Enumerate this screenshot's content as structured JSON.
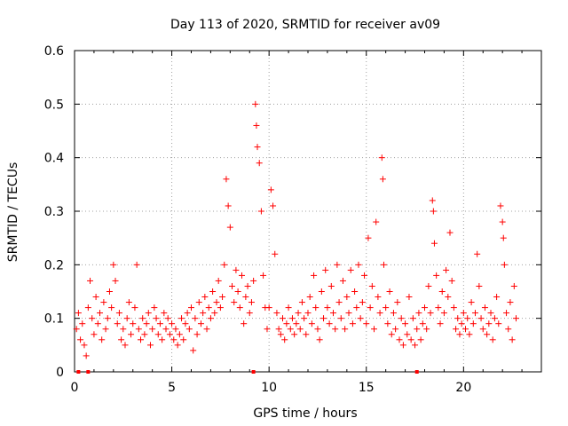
{
  "chart_data": {
    "type": "scatter",
    "title": "Day 113 of 2020, SRMTID for receiver av09",
    "xlabel": "GPS time / hours",
    "ylabel": "SRMTID / TECUs",
    "xlim": [
      0,
      24
    ],
    "ylim": [
      0,
      0.6
    ],
    "grid": true,
    "marker": "+",
    "color": "#ff0000",
    "x_ticks": [
      0,
      5,
      10,
      15,
      20
    ],
    "y_ticks": [
      0,
      0.1,
      0.2,
      0.3,
      0.4,
      0.5,
      0.6
    ],
    "x_tick_labels": [
      "0",
      "5",
      "10",
      "15",
      "20"
    ],
    "y_tick_labels": [
      "0",
      "0.1",
      "0.2",
      "0.3",
      "0.4",
      "0.5",
      "0.6"
    ],
    "series": [
      {
        "name": "SRMTID",
        "points": [
          [
            0.1,
            0.08
          ],
          [
            0.2,
            0.11
          ],
          [
            0.3,
            0.06
          ],
          [
            0.4,
            0.09
          ],
          [
            0.5,
            0.05
          ],
          [
            0.6,
            0.03
          ],
          [
            0.7,
            0.12
          ],
          [
            0.8,
            0.17
          ],
          [
            0.9,
            0.1
          ],
          [
            1.0,
            0.07
          ],
          [
            1.1,
            0.14
          ],
          [
            1.2,
            0.09
          ],
          [
            1.3,
            0.11
          ],
          [
            1.4,
            0.06
          ],
          [
            1.5,
            0.13
          ],
          [
            1.6,
            0.08
          ],
          [
            1.7,
            0.1
          ],
          [
            1.8,
            0.15
          ],
          [
            1.9,
            0.12
          ],
          [
            2.0,
            0.2
          ],
          [
            2.1,
            0.17
          ],
          [
            2.2,
            0.09
          ],
          [
            2.3,
            0.11
          ],
          [
            2.4,
            0.06
          ],
          [
            2.5,
            0.08
          ],
          [
            2.6,
            0.05
          ],
          [
            2.7,
            0.1
          ],
          [
            2.8,
            0.13
          ],
          [
            2.9,
            0.07
          ],
          [
            3.0,
            0.09
          ],
          [
            3.1,
            0.12
          ],
          [
            3.2,
            0.2
          ],
          [
            3.3,
            0.08
          ],
          [
            3.4,
            0.06
          ],
          [
            3.5,
            0.1
          ],
          [
            3.6,
            0.07
          ],
          [
            3.7,
            0.09
          ],
          [
            3.8,
            0.11
          ],
          [
            3.9,
            0.05
          ],
          [
            4.0,
            0.08
          ],
          [
            4.1,
            0.12
          ],
          [
            4.2,
            0.1
          ],
          [
            4.3,
            0.07
          ],
          [
            4.4,
            0.09
          ],
          [
            4.5,
            0.06
          ],
          [
            4.6,
            0.11
          ],
          [
            4.7,
            0.08
          ],
          [
            4.8,
            0.1
          ],
          [
            4.9,
            0.07
          ],
          [
            5.0,
            0.09
          ],
          [
            5.1,
            0.06
          ],
          [
            5.2,
            0.08
          ],
          [
            5.3,
            0.05
          ],
          [
            5.4,
            0.07
          ],
          [
            5.5,
            0.1
          ],
          [
            5.6,
            0.06
          ],
          [
            5.7,
            0.09
          ],
          [
            5.8,
            0.11
          ],
          [
            5.9,
            0.08
          ],
          [
            6.0,
            0.12
          ],
          [
            6.1,
            0.04
          ],
          [
            6.2,
            0.1
          ],
          [
            6.3,
            0.07
          ],
          [
            6.4,
            0.13
          ],
          [
            6.5,
            0.09
          ],
          [
            6.6,
            0.11
          ],
          [
            6.7,
            0.14
          ],
          [
            6.8,
            0.08
          ],
          [
            6.9,
            0.12
          ],
          [
            7.0,
            0.1
          ],
          [
            7.1,
            0.15
          ],
          [
            7.2,
            0.11
          ],
          [
            7.3,
            0.13
          ],
          [
            7.4,
            0.17
          ],
          [
            7.5,
            0.12
          ],
          [
            7.6,
            0.14
          ],
          [
            7.7,
            0.2
          ],
          [
            7.8,
            0.36
          ],
          [
            7.9,
            0.31
          ],
          [
            8.0,
            0.27
          ],
          [
            8.1,
            0.16
          ],
          [
            8.2,
            0.13
          ],
          [
            8.3,
            0.19
          ],
          [
            8.4,
            0.15
          ],
          [
            8.5,
            0.12
          ],
          [
            8.6,
            0.18
          ],
          [
            8.7,
            0.09
          ],
          [
            8.8,
            0.14
          ],
          [
            8.9,
            0.16
          ],
          [
            9.0,
            0.11
          ],
          [
            9.1,
            0.13
          ],
          [
            9.2,
            0.17
          ],
          [
            9.3,
            0.5
          ],
          [
            9.35,
            0.46
          ],
          [
            9.4,
            0.42
          ],
          [
            9.5,
            0.39
          ],
          [
            9.6,
            0.3
          ],
          [
            9.7,
            0.18
          ],
          [
            9.8,
            0.12
          ],
          [
            9.9,
            0.08
          ],
          [
            10.0,
            0.12
          ],
          [
            10.1,
            0.34
          ],
          [
            10.2,
            0.31
          ],
          [
            10.3,
            0.22
          ],
          [
            10.4,
            0.11
          ],
          [
            10.5,
            0.08
          ],
          [
            10.6,
            0.07
          ],
          [
            10.7,
            0.1
          ],
          [
            10.8,
            0.06
          ],
          [
            10.9,
            0.09
          ],
          [
            11.0,
            0.12
          ],
          [
            11.1,
            0.08
          ],
          [
            11.2,
            0.1
          ],
          [
            11.3,
            0.07
          ],
          [
            11.4,
            0.09
          ],
          [
            11.5,
            0.11
          ],
          [
            11.6,
            0.08
          ],
          [
            11.7,
            0.13
          ],
          [
            11.8,
            0.1
          ],
          [
            11.9,
            0.07
          ],
          [
            12.0,
            0.11
          ],
          [
            12.1,
            0.14
          ],
          [
            12.2,
            0.09
          ],
          [
            12.3,
            0.18
          ],
          [
            12.4,
            0.12
          ],
          [
            12.5,
            0.08
          ],
          [
            12.6,
            0.06
          ],
          [
            12.7,
            0.15
          ],
          [
            12.8,
            0.1
          ],
          [
            12.9,
            0.19
          ],
          [
            13.0,
            0.12
          ],
          [
            13.1,
            0.09
          ],
          [
            13.2,
            0.16
          ],
          [
            13.3,
            0.11
          ],
          [
            13.4,
            0.08
          ],
          [
            13.5,
            0.2
          ],
          [
            13.6,
            0.13
          ],
          [
            13.7,
            0.1
          ],
          [
            13.8,
            0.17
          ],
          [
            13.9,
            0.08
          ],
          [
            14.0,
            0.14
          ],
          [
            14.1,
            0.11
          ],
          [
            14.2,
            0.19
          ],
          [
            14.3,
            0.09
          ],
          [
            14.4,
            0.15
          ],
          [
            14.5,
            0.12
          ],
          [
            14.6,
            0.2
          ],
          [
            14.7,
            0.1
          ],
          [
            14.8,
            0.13
          ],
          [
            14.9,
            0.18
          ],
          [
            15.0,
            0.09
          ],
          [
            15.1,
            0.25
          ],
          [
            15.2,
            0.12
          ],
          [
            15.3,
            0.16
          ],
          [
            15.4,
            0.08
          ],
          [
            15.5,
            0.28
          ],
          [
            15.6,
            0.14
          ],
          [
            15.7,
            0.11
          ],
          [
            15.8,
            0.4
          ],
          [
            15.85,
            0.36
          ],
          [
            15.9,
            0.2
          ],
          [
            16.0,
            0.12
          ],
          [
            16.1,
            0.09
          ],
          [
            16.2,
            0.15
          ],
          [
            16.3,
            0.07
          ],
          [
            16.4,
            0.11
          ],
          [
            16.5,
            0.08
          ],
          [
            16.6,
            0.13
          ],
          [
            16.7,
            0.06
          ],
          [
            16.8,
            0.1
          ],
          [
            16.9,
            0.05
          ],
          [
            17.0,
            0.09
          ],
          [
            17.1,
            0.07
          ],
          [
            17.2,
            0.14
          ],
          [
            17.3,
            0.06
          ],
          [
            17.4,
            0.1
          ],
          [
            17.5,
            0.05
          ],
          [
            17.6,
            0.08
          ],
          [
            17.7,
            0.11
          ],
          [
            17.8,
            0.06
          ],
          [
            17.9,
            0.09
          ],
          [
            18.0,
            0.12
          ],
          [
            18.1,
            0.08
          ],
          [
            18.2,
            0.16
          ],
          [
            18.3,
            0.11
          ],
          [
            18.4,
            0.32
          ],
          [
            18.45,
            0.3
          ],
          [
            18.5,
            0.24
          ],
          [
            18.6,
            0.18
          ],
          [
            18.7,
            0.12
          ],
          [
            18.8,
            0.09
          ],
          [
            18.9,
            0.15
          ],
          [
            19.0,
            0.11
          ],
          [
            19.1,
            0.19
          ],
          [
            19.2,
            0.14
          ],
          [
            19.3,
            0.26
          ],
          [
            19.4,
            0.17
          ],
          [
            19.5,
            0.12
          ],
          [
            19.6,
            0.08
          ],
          [
            19.7,
            0.1
          ],
          [
            19.8,
            0.07
          ],
          [
            19.9,
            0.09
          ],
          [
            20.0,
            0.11
          ],
          [
            20.1,
            0.08
          ],
          [
            20.2,
            0.1
          ],
          [
            20.3,
            0.07
          ],
          [
            20.4,
            0.13
          ],
          [
            20.5,
            0.09
          ],
          [
            20.6,
            0.11
          ],
          [
            20.7,
            0.22
          ],
          [
            20.8,
            0.16
          ],
          [
            20.9,
            0.1
          ],
          [
            21.0,
            0.08
          ],
          [
            21.1,
            0.12
          ],
          [
            21.2,
            0.07
          ],
          [
            21.3,
            0.09
          ],
          [
            21.4,
            0.11
          ],
          [
            21.5,
            0.06
          ],
          [
            21.6,
            0.1
          ],
          [
            21.7,
            0.14
          ],
          [
            21.8,
            0.09
          ],
          [
            21.9,
            0.31
          ],
          [
            22.0,
            0.28
          ],
          [
            22.05,
            0.25
          ],
          [
            22.1,
            0.2
          ],
          [
            22.2,
            0.11
          ],
          [
            22.3,
            0.08
          ],
          [
            22.4,
            0.13
          ],
          [
            22.5,
            0.06
          ],
          [
            22.6,
            0.16
          ],
          [
            22.7,
            0.1
          ]
        ]
      }
    ],
    "zero_markers_x": [
      0.2,
      0.7,
      9.2,
      17.6
    ]
  }
}
